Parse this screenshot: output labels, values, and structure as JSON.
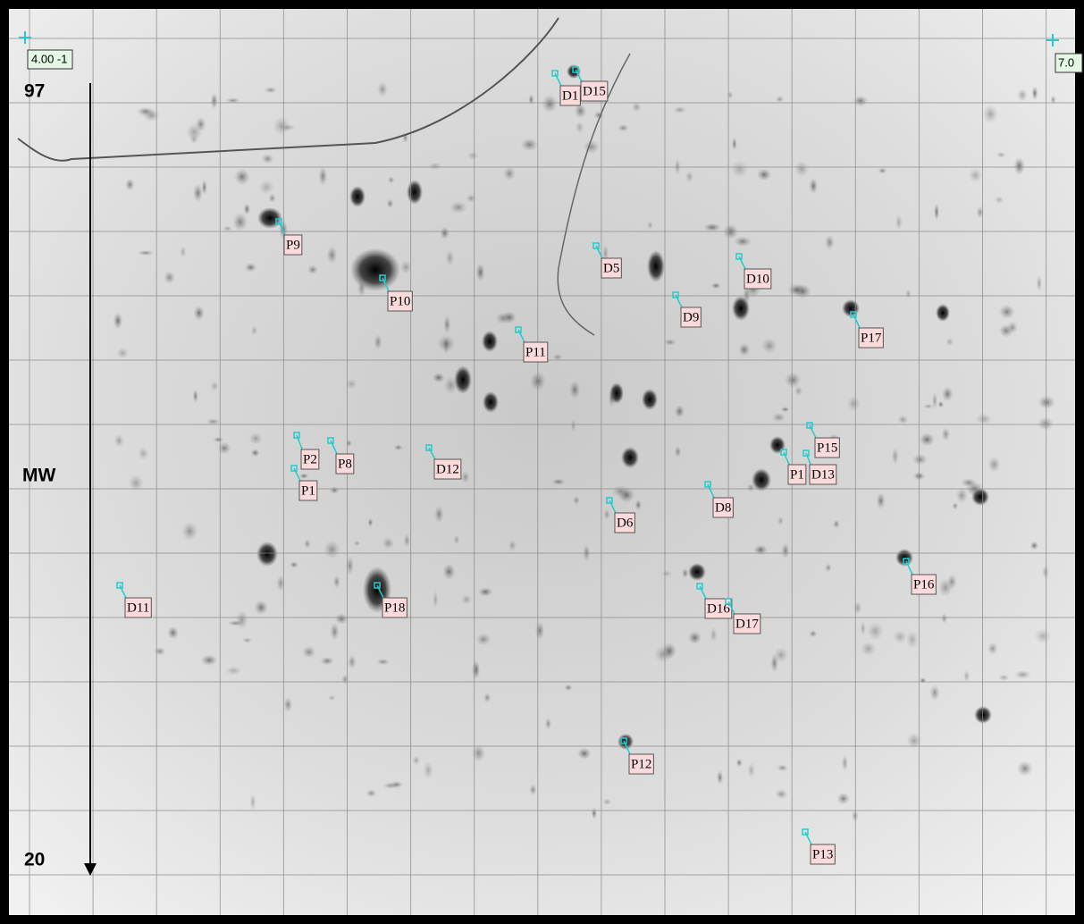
{
  "ph_labels": {
    "left": "4.00 -1",
    "right": "7.0"
  },
  "mw_axis": {
    "top": "97",
    "title": "MW",
    "bottom": "20"
  },
  "spots": [
    "D1",
    "D15",
    "P9",
    "D5",
    "D10",
    "P10",
    "D9",
    "P17",
    "P11",
    "P15",
    "P2",
    "P8",
    "D12",
    "P1",
    "P1",
    "D13",
    "D8",
    "D6",
    "P16",
    "D11",
    "P18",
    "D16",
    "D17",
    "P12",
    "P13"
  ]
}
